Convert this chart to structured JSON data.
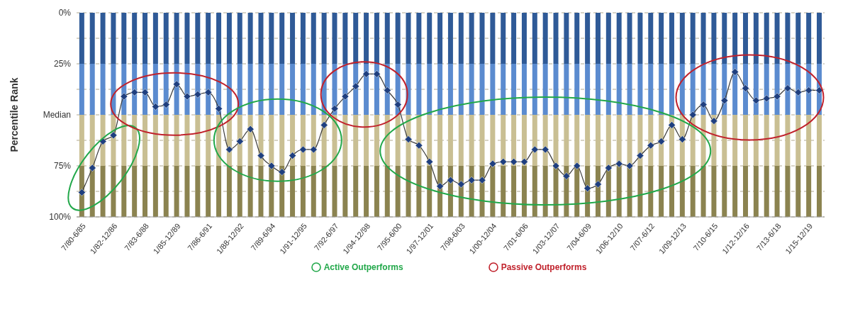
{
  "chart_data": {
    "type": "bar",
    "stacked": true,
    "ylabel": "Percentile Rank",
    "categories": [
      "7/80-6/85",
      null,
      null,
      "1/82-12/86",
      null,
      null,
      "7/83-6/88",
      null,
      null,
      "1/85-12/89",
      null,
      null,
      "7/86-6/91",
      null,
      null,
      "1/88-12/92",
      null,
      null,
      "7/89-6/94",
      null,
      null,
      "1/91-12/95",
      null,
      null,
      "7/92-6/97",
      null,
      null,
      "1/94-12/98",
      null,
      null,
      "7/95-6/00",
      null,
      null,
      "1/97-12/01",
      null,
      null,
      "7/98-6/03",
      null,
      null,
      "1/00-12/04",
      null,
      null,
      "7/01-6/06",
      null,
      null,
      "1/03-12/07",
      null,
      null,
      "7/04-6/09",
      null,
      null,
      "1/06-12/10",
      null,
      null,
      "7/07-6/12",
      null,
      null,
      "1/09-12/13",
      null,
      null,
      "7/10-6/15",
      null,
      null,
      "1/12-12/16",
      null,
      null,
      "7/13-6/18",
      null,
      null,
      "1/15-12/19",
      null
    ],
    "series": [
      {
        "color": "#2f5a97",
        "values": [
          25,
          25,
          25,
          25,
          25,
          25,
          25,
          25,
          25,
          25,
          25,
          25,
          25,
          25,
          25,
          25,
          25,
          25,
          25,
          25,
          25,
          25,
          25,
          25,
          25,
          25,
          25,
          25,
          25,
          25,
          25,
          25,
          25,
          25,
          25,
          25,
          25,
          25,
          25,
          25,
          25,
          25,
          25,
          25,
          25,
          25,
          25,
          25,
          25,
          25,
          25,
          25,
          25,
          25,
          25,
          25,
          25,
          25,
          25,
          25,
          25,
          25,
          25,
          25,
          25,
          25,
          25,
          25,
          25,
          25,
          25
        ]
      },
      {
        "color": "#5b8bcf",
        "values": [
          25,
          25,
          25,
          25,
          25,
          25,
          25,
          25,
          25,
          25,
          25,
          25,
          25,
          25,
          25,
          25,
          25,
          25,
          25,
          25,
          25,
          25,
          25,
          25,
          25,
          25,
          25,
          25,
          25,
          25,
          25,
          25,
          25,
          25,
          25,
          25,
          25,
          25,
          25,
          25,
          25,
          25,
          25,
          25,
          25,
          25,
          25,
          25,
          25,
          25,
          25,
          25,
          25,
          25,
          25,
          25,
          25,
          25,
          25,
          25,
          25,
          25,
          25,
          25,
          25,
          25,
          25,
          25,
          25,
          25,
          25
        ]
      },
      {
        "color": "#c9bf93",
        "values": [
          25,
          25,
          25,
          25,
          25,
          25,
          25,
          25,
          25,
          25,
          25,
          25,
          25,
          25,
          25,
          25,
          25,
          25,
          25,
          25,
          25,
          25,
          25,
          25,
          25,
          25,
          25,
          25,
          25,
          25,
          25,
          25,
          25,
          25,
          25,
          25,
          25,
          25,
          25,
          25,
          25,
          25,
          25,
          25,
          25,
          25,
          25,
          25,
          25,
          25,
          25,
          25,
          25,
          25,
          25,
          25,
          25,
          25,
          25,
          25,
          25,
          25,
          25,
          25,
          25,
          25,
          25,
          25,
          25,
          25,
          25
        ]
      },
      {
        "color": "#8b8350",
        "values": [
          25,
          25,
          25,
          25,
          25,
          25,
          25,
          25,
          25,
          25,
          25,
          25,
          25,
          25,
          25,
          25,
          25,
          25,
          25,
          25,
          25,
          25,
          25,
          25,
          25,
          25,
          25,
          25,
          25,
          25,
          25,
          25,
          25,
          25,
          25,
          25,
          25,
          25,
          25,
          25,
          25,
          25,
          25,
          25,
          25,
          25,
          25,
          25,
          25,
          25,
          25,
          25,
          25,
          25,
          25,
          25,
          25,
          25,
          25,
          25,
          25,
          25,
          25,
          25,
          25,
          25,
          25,
          25,
          25,
          25,
          25
        ]
      },
      {
        "type": "line",
        "color": "#1f3f7f",
        "marker": "diamond",
        "line_style": "solid",
        "values": [
          88,
          76,
          63,
          60,
          41,
          39,
          39,
          46,
          45,
          35,
          41,
          40,
          39,
          47,
          67,
          63,
          57,
          70,
          75,
          78,
          70,
          67,
          67,
          55,
          47,
          41,
          36,
          30,
          30,
          38,
          45,
          62,
          65,
          73,
          85,
          82,
          84,
          82,
          82,
          74,
          73,
          73,
          73,
          67,
          67,
          75,
          80,
          75,
          86,
          84,
          76,
          74,
          75,
          70,
          65,
          63,
          55,
          62,
          50,
          45,
          53,
          43,
          29,
          37,
          43,
          42,
          41,
          37,
          39,
          38,
          38
        ]
      }
    ],
    "ylim": [
      100,
      0
    ],
    "yticks": [
      {
        "value": 0,
        "label": "0%"
      },
      {
        "value": 12.5,
        "label": null
      },
      {
        "value": 25,
        "label": "25%"
      },
      {
        "value": 37.5,
        "label": null
      },
      {
        "value": 50,
        "label": "Median"
      },
      {
        "value": 62.5,
        "label": null
      },
      {
        "value": 75,
        "label": "75%"
      },
      {
        "value": 87.5,
        "label": null
      },
      {
        "value": 100,
        "label": "100%"
      }
    ],
    "grid": "y",
    "annotations": [
      "Active Outperforms",
      "Passive Outperforms"
    ]
  }
}
